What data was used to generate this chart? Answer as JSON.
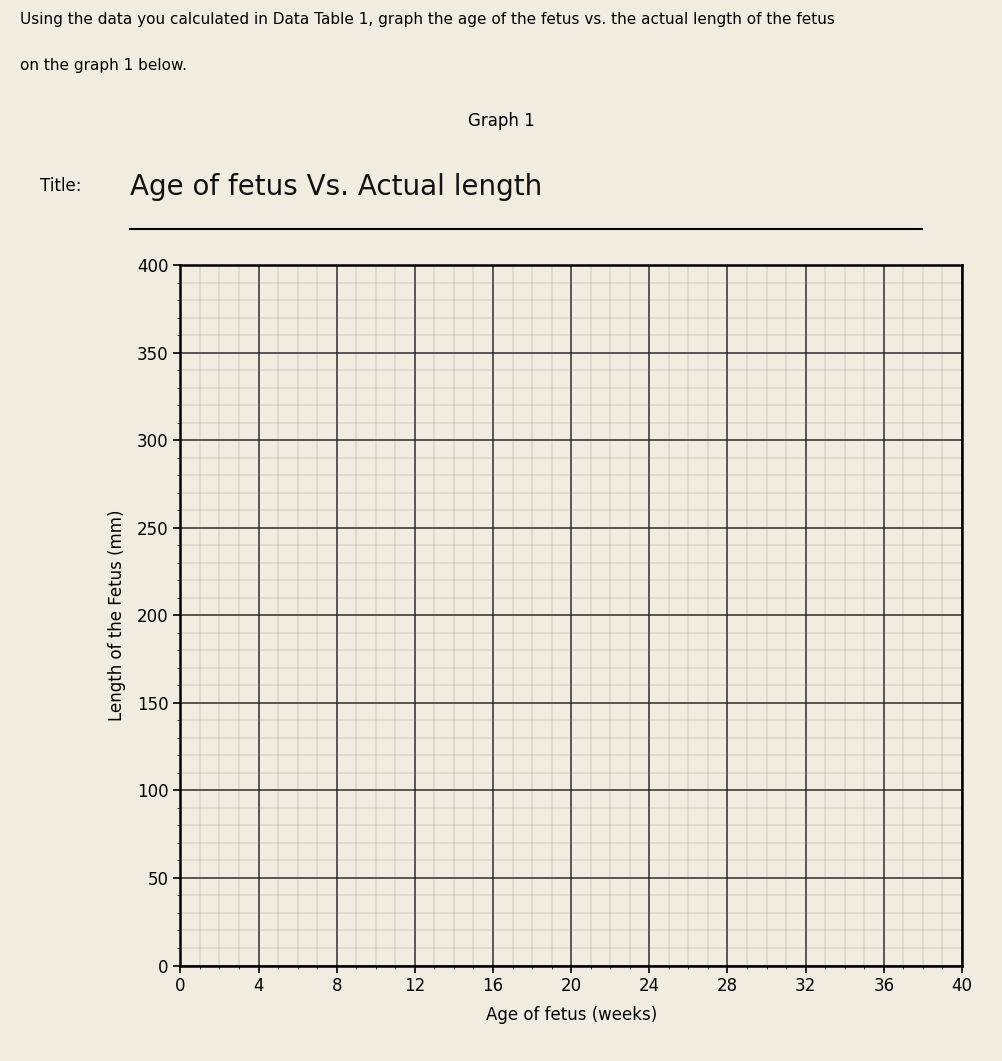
{
  "title_label": "Title:",
  "title_handwritten": "Age of fetus Vs. Actual length",
  "graph_label": "Graph 1",
  "instructions_line1": "Using the data you calculated in Data Table 1, graph the age of the fetus vs. the actual length of the fetus",
  "instructions_line2": "on the graph 1 below.",
  "xlabel": "Age of fetus (weeks)",
  "ylabel": "Length of the Fetus (mm)",
  "x_ticks": [
    0,
    4,
    8,
    12,
    16,
    20,
    24,
    28,
    32,
    36,
    40
  ],
  "y_ticks": [
    0,
    50,
    100,
    150,
    200,
    250,
    300,
    350,
    400
  ],
  "xlim": [
    0,
    40
  ],
  "ylim": [
    0,
    400
  ],
  "grid_major_color": "#222222",
  "grid_minor_color": "#666666",
  "paper_color": "#f0ece0",
  "minor_x_step": 1,
  "minor_y_step": 10
}
